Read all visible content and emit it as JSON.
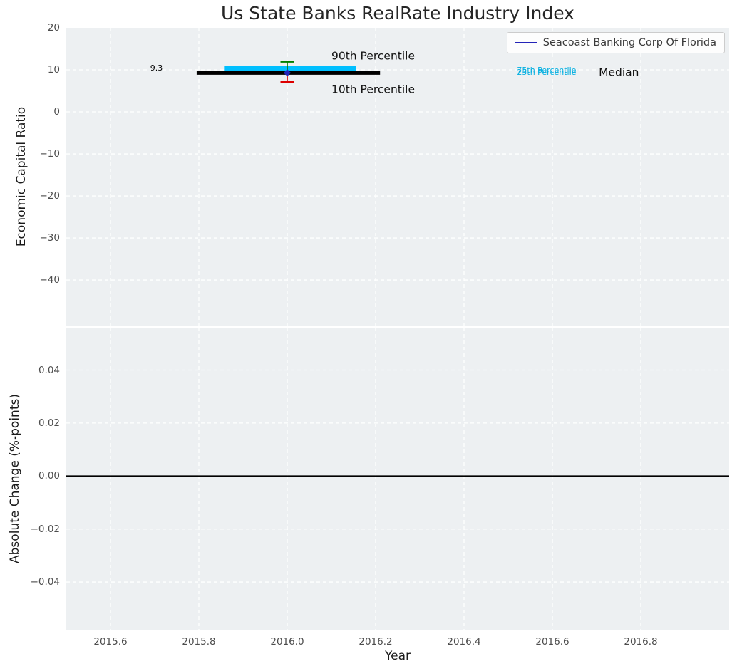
{
  "figure": {
    "title": "Us State Banks RealRate Industry Index",
    "xlabel": "Year",
    "background": "#ffffff",
    "axes_background": "#edf0f2",
    "grid_color": "#ffffff",
    "tick_color": "#4d4d4d",
    "title_color": "#262626"
  },
  "legend": {
    "label": "Seacoast Banking Corp Of Florida",
    "line_color": "#2424b8",
    "text_color": "#3a3a3a"
  },
  "chart_data": [
    {
      "type": "line",
      "panel": "economic-capital-ratio",
      "title": "Us State Banks RealRate Industry Index",
      "ylabel": "Economic Capital Ratio",
      "xlim": [
        2015.5,
        2017.0
      ],
      "ylim": [
        -51,
        20
      ],
      "xticks": [
        2015.6,
        2015.8,
        2016.0,
        2016.2,
        2016.4,
        2016.6,
        2016.8
      ],
      "xtick_labels": [
        "2015.6",
        "2015.8",
        "2016.0",
        "2016.2",
        "2016.4",
        "2016.6",
        "2016.8"
      ],
      "show_xtick_labels": false,
      "yticks": [
        20,
        10,
        0,
        -10,
        -20,
        -30,
        -40
      ],
      "ytick_labels": [
        "20",
        "10",
        "0",
        "−10",
        "−20",
        "−30",
        "−40"
      ],
      "grid": true,
      "legend_position": "upper right",
      "series": [
        {
          "name": "Seacoast Banking Corp Of Florida",
          "x": [
            2016.0
          ],
          "y": [
            9.3
          ],
          "color": "#2424b8",
          "marker": "diamond"
        }
      ],
      "industry_index": {
        "x": 2016.0,
        "median": 9.3,
        "p10": 7.1,
        "p25": 9.1,
        "p75": 11.0,
        "p90": 11.9,
        "median_xspan": [
          2015.795,
          2016.21
        ],
        "box_xspan": [
          2015.857,
          2016.155
        ],
        "median_color": "#000000",
        "box_color": "#00bfff",
        "p90_color": "#008000",
        "p10_color": "#dd0000"
      },
      "annotations": [
        {
          "text": "9.3",
          "x": 2015.69,
          "y": 9.3,
          "size": 11,
          "color": "#000000",
          "va": "bottom"
        },
        {
          "text": "90th Percentile",
          "x": 2016.1,
          "y": 13.2,
          "size": 15.5,
          "color": "#111111",
          "va": "middle"
        },
        {
          "text": "10th Percentile",
          "x": 2016.1,
          "y": 5.3,
          "size": 15.5,
          "color": "#111111",
          "va": "middle"
        },
        {
          "text": "75th Percentile",
          "x": 2016.52,
          "y": 9.9,
          "size": 11,
          "color": "#00aee0",
          "va": "middle"
        },
        {
          "text": "25th Percentile",
          "x": 2016.52,
          "y": 9.35,
          "size": 11,
          "color": "#00aee0",
          "va": "middle"
        },
        {
          "text": "Median",
          "x": 2016.705,
          "y": 9.3,
          "size": 15.5,
          "color": "#111111",
          "va": "middle"
        }
      ]
    },
    {
      "type": "line",
      "panel": "absolute-change",
      "ylabel": "Absolute Change (%-points)",
      "xlim": [
        2015.5,
        2017.0
      ],
      "ylim": [
        -0.058,
        0.056
      ],
      "xticks": [
        2015.6,
        2015.8,
        2016.0,
        2016.2,
        2016.4,
        2016.6,
        2016.8
      ],
      "xtick_labels": [
        "2015.6",
        "2015.8",
        "2016.0",
        "2016.2",
        "2016.4",
        "2016.6",
        "2016.8"
      ],
      "show_xtick_labels": true,
      "yticks": [
        0.04,
        0.02,
        0,
        -0.02,
        -0.04
      ],
      "ytick_labels": [
        "0.04",
        "0.02",
        "0.00",
        "−0.02",
        "−0.04"
      ],
      "grid": true,
      "hline": {
        "y": 0,
        "color": "#000000",
        "width": 1.8
      }
    }
  ]
}
